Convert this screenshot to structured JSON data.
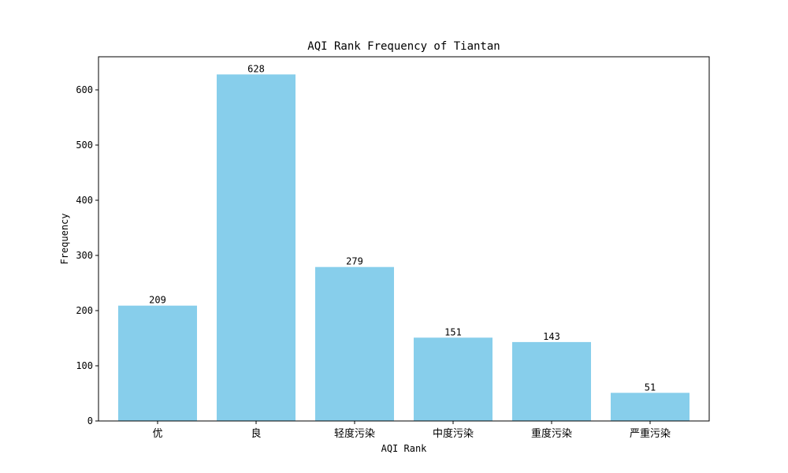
{
  "chart_data": {
    "type": "bar",
    "title": "AQI Rank Frequency of Tiantan",
    "xlabel": "AQI Rank",
    "ylabel": "Frequency",
    "categories": [
      "优",
      "良",
      "轻度污染",
      "中度污染",
      "重度污染",
      "严重污染"
    ],
    "values": [
      209,
      628,
      279,
      151,
      143,
      51
    ],
    "data_labels": [
      "209",
      "628",
      "279",
      "151",
      "143",
      "51"
    ],
    "ylim": [
      0,
      660
    ],
    "yticks": [
      0,
      100,
      200,
      300,
      400,
      500,
      600
    ],
    "ytick_labels": [
      "0",
      "100",
      "200",
      "300",
      "400",
      "500",
      "600"
    ],
    "bar_color": "#87CEEB",
    "grid": false,
    "legend": "none"
  }
}
